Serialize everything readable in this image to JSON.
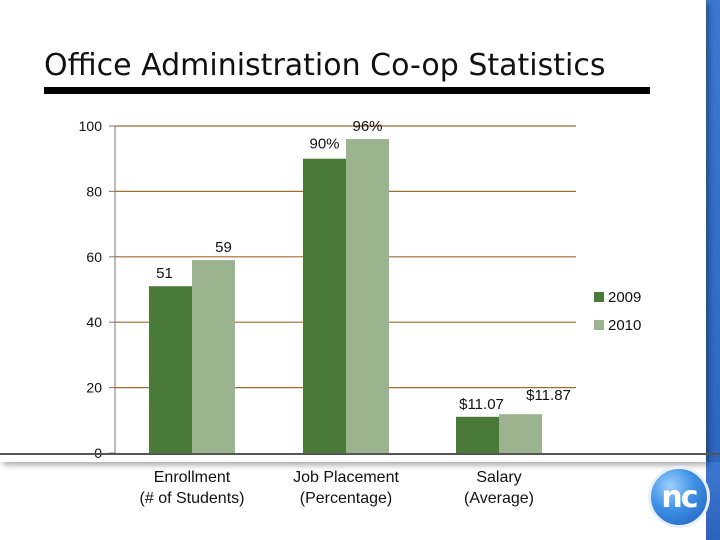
{
  "title": "Office Administration Co-op Statistics",
  "logo_text": "nc",
  "chart_data": {
    "type": "bar",
    "categories": [
      "Enrollment\n(# of Students)",
      "Job Placement\n(Percentage)",
      "Salary\n(Average)"
    ],
    "series": [
      {
        "name": "2009",
        "color": "#4a7a38",
        "values": [
          51,
          90,
          11.07
        ],
        "labels": [
          "51",
          "90%",
          "$11.07"
        ]
      },
      {
        "name": "2010",
        "color": "#9bb38e",
        "values": [
          59,
          96,
          11.87
        ],
        "labels": [
          "59",
          "96%",
          "$11.87"
        ]
      }
    ],
    "yticks": [
      0,
      20,
      40,
      60,
      80,
      100
    ],
    "ylim": [
      0,
      100
    ],
    "grid": true,
    "legend": "right"
  }
}
